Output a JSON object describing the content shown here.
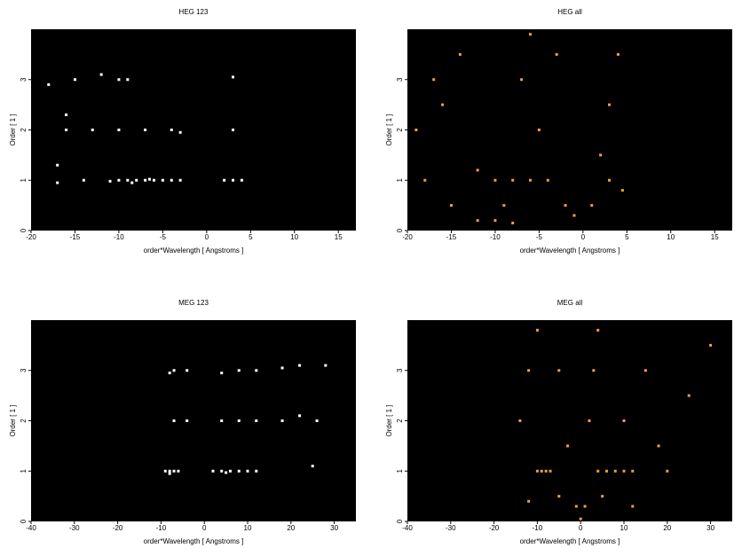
{
  "chart_data": [
    {
      "type": "scatter",
      "title": "HEG 123",
      "x_label": "order*Wavelength [ Angstroms ]",
      "y_label": "Order [ 1 ]",
      "xlim": [
        -20,
        17
      ],
      "xticks": [
        -20,
        -15,
        -10,
        -5,
        0,
        5,
        10,
        15
      ],
      "ylim": [
        0,
        4
      ],
      "yticks": [
        0,
        1,
        2,
        3
      ],
      "color": "#ffffff",
      "x": [
        -10,
        -9,
        -8,
        -7,
        -6,
        -5,
        -4,
        -3,
        -11,
        -8.5,
        -6.5,
        2,
        3,
        4,
        -17,
        -14,
        -16,
        -13,
        -10,
        -7,
        -4,
        -3,
        3,
        -18,
        -15,
        -12,
        -10,
        -9,
        3,
        -17,
        -16
      ],
      "y": [
        1,
        1,
        1,
        1,
        1,
        1,
        1,
        1,
        0.98,
        0.95,
        1.02,
        1,
        1,
        1,
        0.95,
        1,
        2,
        2,
        2,
        2,
        2,
        1.95,
        2,
        2.9,
        3,
        3.1,
        3,
        3,
        3.05,
        1.3,
        2.3
      ]
    },
    {
      "type": "scatter",
      "title": "HEG all",
      "x_label": "order*Wavelength [ Angstroms ]",
      "y_label": "Order [ 1 ]",
      "xlim": [
        -20,
        17
      ],
      "xticks": [
        -20,
        -15,
        -10,
        -5,
        0,
        5,
        10,
        15
      ],
      "ylim": [
        0,
        4
      ],
      "yticks": [
        0,
        1,
        2,
        3
      ],
      "color": "#f0a040",
      "x": [
        -18,
        -16,
        -14,
        -12,
        -10,
        -8,
        -6,
        -4,
        -12,
        -10,
        -8,
        -5,
        -3,
        -2,
        -1,
        1,
        2,
        3,
        4,
        4.5,
        3,
        -17,
        -19,
        -7,
        -15,
        -9,
        -6
      ],
      "y": [
        1,
        2.5,
        3.5,
        1.2,
        1,
        1,
        1,
        1,
        0.2,
        0.2,
        0.15,
        2,
        3.5,
        0.5,
        0.3,
        0.5,
        1.5,
        2.5,
        3.5,
        0.8,
        1,
        3,
        2,
        3,
        0.5,
        0.5,
        3.9
      ]
    },
    {
      "type": "scatter",
      "title": "MEG 123",
      "x_label": "order*Wavelength [ Angstroms ]",
      "y_label": "Order [ 1 ]",
      "xlim": [
        -40,
        35
      ],
      "xticks": [
        -40,
        -30,
        -20,
        -10,
        0,
        10,
        20,
        30
      ],
      "ylim": [
        0,
        4
      ],
      "yticks": [
        0,
        1,
        2,
        3
      ],
      "color": "#ffffff",
      "x": [
        -9,
        -8,
        -7,
        -6,
        2,
        4,
        6,
        8,
        10,
        -8,
        5,
        12,
        25,
        -7,
        -4,
        4,
        8,
        12,
        18,
        22,
        26,
        -8,
        -4,
        4,
        8,
        12,
        18,
        22,
        28,
        -7
      ],
      "y": [
        1,
        1,
        1,
        1,
        1,
        1,
        1,
        1,
        1,
        0.95,
        0.97,
        1,
        1.1,
        2,
        2,
        2,
        2,
        2,
        2,
        2.1,
        2,
        2.95,
        3,
        2.95,
        3,
        3,
        3.05,
        3.1,
        3.1,
        3
      ]
    },
    {
      "type": "scatter",
      "title": "MEG all",
      "x_label": "order*Wavelength [ Angstroms ]",
      "y_label": "Order [ 1 ]",
      "xlim": [
        -40,
        35
      ],
      "xticks": [
        -40,
        -30,
        -20,
        -10,
        0,
        10,
        20,
        30
      ],
      "ylim": [
        0,
        4
      ],
      "yticks": [
        0,
        1,
        2,
        3
      ],
      "color": "#f0a040",
      "x": [
        -10,
        -9,
        -8,
        -7,
        4,
        6,
        8,
        10,
        12,
        -14,
        -12,
        -10,
        -5,
        -3,
        -1,
        1,
        2,
        3,
        4,
        10,
        15,
        20,
        25,
        30,
        -5,
        5,
        0,
        -12,
        12,
        18
      ],
      "y": [
        1,
        1,
        1,
        1,
        1,
        1,
        1,
        1,
        1,
        2,
        3,
        3.8,
        3,
        1.5,
        0.3,
        0.3,
        2,
        3,
        3.8,
        2,
        3,
        1,
        2.5,
        3.5,
        0.5,
        0.5,
        0.05,
        0.4,
        0.3,
        1.5
      ]
    }
  ]
}
